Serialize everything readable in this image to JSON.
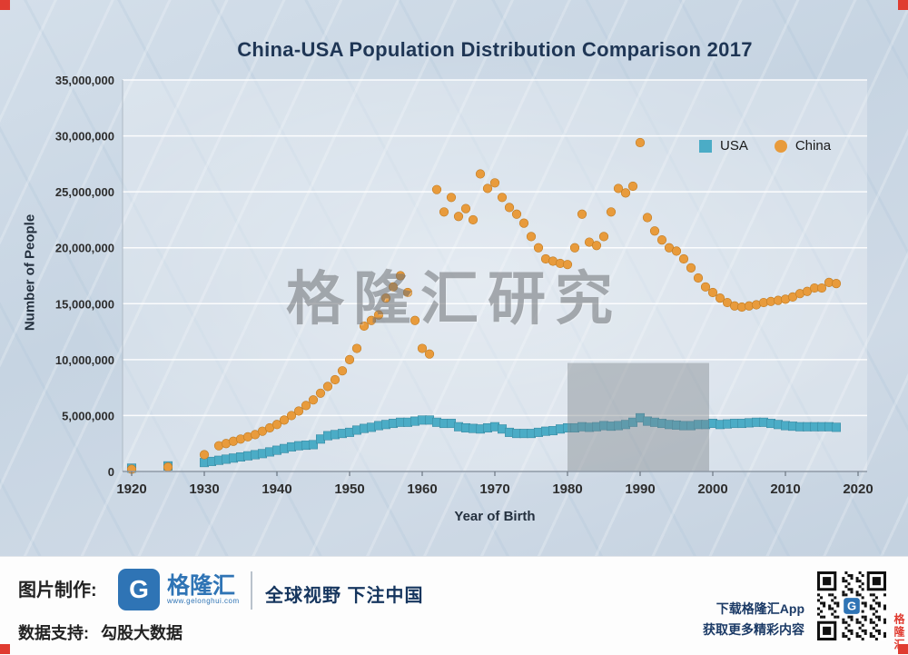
{
  "page": {
    "watermark": "格隆汇研究"
  },
  "chart_data": {
    "type": "scatter",
    "title": "China-USA Population Distribution Comparison 2017",
    "xlabel": "Year of Birth",
    "ylabel": "Number of People",
    "xlim": [
      1917,
      2022
    ],
    "ylim": [
      0,
      35000000
    ],
    "xticks": [
      1920,
      1930,
      1940,
      1950,
      1960,
      1970,
      1980,
      1990,
      2000,
      2010,
      2020
    ],
    "yticks": [
      0,
      5000000,
      10000000,
      15000000,
      20000000,
      25000000,
      30000000,
      35000000
    ],
    "ytick_labels": [
      "0",
      "5,000,000",
      "10,000,000",
      "15,000,000",
      "20,000,000",
      "25,000,000",
      "30,000,000",
      "35,000,000"
    ],
    "grid": "horizontal",
    "legend_position": "upper-right-inside",
    "highlight_region": {
      "x0": 1980,
      "x1": 1999.5,
      "y0": 0,
      "y1": 9700000,
      "color": "rgba(125,130,136,0.42)"
    },
    "series": [
      {
        "name": "USA",
        "marker": "square",
        "color": "#4bacc6",
        "edge": "#3a8ba3",
        "points": [
          [
            1920,
            300000
          ],
          [
            1925,
            500000
          ],
          [
            1930,
            800000
          ],
          [
            1931,
            900000
          ],
          [
            1932,
            1000000
          ],
          [
            1933,
            1100000
          ],
          [
            1934,
            1200000
          ],
          [
            1935,
            1300000
          ],
          [
            1936,
            1400000
          ],
          [
            1937,
            1500000
          ],
          [
            1938,
            1600000
          ],
          [
            1939,
            1750000
          ],
          [
            1940,
            1900000
          ],
          [
            1941,
            2050000
          ],
          [
            1942,
            2200000
          ],
          [
            1943,
            2300000
          ],
          [
            1944,
            2350000
          ],
          [
            1945,
            2400000
          ],
          [
            1946,
            2900000
          ],
          [
            1947,
            3200000
          ],
          [
            1948,
            3300000
          ],
          [
            1949,
            3400000
          ],
          [
            1950,
            3500000
          ],
          [
            1951,
            3700000
          ],
          [
            1952,
            3850000
          ],
          [
            1953,
            3950000
          ],
          [
            1954,
            4100000
          ],
          [
            1955,
            4200000
          ],
          [
            1956,
            4300000
          ],
          [
            1957,
            4400000
          ],
          [
            1958,
            4400000
          ],
          [
            1959,
            4500000
          ],
          [
            1960,
            4600000
          ],
          [
            1961,
            4600000
          ],
          [
            1962,
            4400000
          ],
          [
            1963,
            4300000
          ],
          [
            1964,
            4300000
          ],
          [
            1965,
            4000000
          ],
          [
            1966,
            3900000
          ],
          [
            1967,
            3850000
          ],
          [
            1968,
            3800000
          ],
          [
            1969,
            3900000
          ],
          [
            1970,
            4000000
          ],
          [
            1971,
            3800000
          ],
          [
            1972,
            3500000
          ],
          [
            1973,
            3400000
          ],
          [
            1974,
            3400000
          ],
          [
            1975,
            3400000
          ],
          [
            1976,
            3500000
          ],
          [
            1977,
            3600000
          ],
          [
            1978,
            3650000
          ],
          [
            1979,
            3800000
          ],
          [
            1980,
            3900000
          ],
          [
            1981,
            3900000
          ],
          [
            1982,
            4000000
          ],
          [
            1983,
            3950000
          ],
          [
            1984,
            4000000
          ],
          [
            1985,
            4100000
          ],
          [
            1986,
            4050000
          ],
          [
            1987,
            4100000
          ],
          [
            1988,
            4200000
          ],
          [
            1989,
            4400000
          ],
          [
            1990,
            4800000
          ],
          [
            1991,
            4500000
          ],
          [
            1992,
            4400000
          ],
          [
            1993,
            4300000
          ],
          [
            1994,
            4200000
          ],
          [
            1995,
            4150000
          ],
          [
            1996,
            4100000
          ],
          [
            1997,
            4100000
          ],
          [
            1998,
            4200000
          ],
          [
            1999,
            4200000
          ],
          [
            2000,
            4300000
          ],
          [
            2001,
            4200000
          ],
          [
            2002,
            4250000
          ],
          [
            2003,
            4300000
          ],
          [
            2004,
            4300000
          ],
          [
            2005,
            4350000
          ],
          [
            2006,
            4400000
          ],
          [
            2007,
            4400000
          ],
          [
            2008,
            4300000
          ],
          [
            2009,
            4200000
          ],
          [
            2010,
            4100000
          ],
          [
            2011,
            4050000
          ],
          [
            2012,
            4000000
          ],
          [
            2013,
            4000000
          ],
          [
            2014,
            4000000
          ],
          [
            2015,
            4000000
          ],
          [
            2016,
            4000000
          ],
          [
            2017,
            3950000
          ]
        ]
      },
      {
        "name": "China",
        "marker": "circle",
        "color": "#e89b3c",
        "edge": "#c07b22",
        "points": [
          [
            1920,
            200000
          ],
          [
            1925,
            400000
          ],
          [
            1930,
            1500000
          ],
          [
            1932,
            2300000
          ],
          [
            1933,
            2500000
          ],
          [
            1934,
            2700000
          ],
          [
            1935,
            2900000
          ],
          [
            1936,
            3100000
          ],
          [
            1937,
            3300000
          ],
          [
            1938,
            3600000
          ],
          [
            1939,
            3900000
          ],
          [
            1940,
            4200000
          ],
          [
            1941,
            4600000
          ],
          [
            1942,
            5000000
          ],
          [
            1943,
            5400000
          ],
          [
            1944,
            5900000
          ],
          [
            1945,
            6400000
          ],
          [
            1946,
            7000000
          ],
          [
            1947,
            7600000
          ],
          [
            1948,
            8200000
          ],
          [
            1949,
            9000000
          ],
          [
            1950,
            10000000
          ],
          [
            1951,
            11000000
          ],
          [
            1952,
            13000000
          ],
          [
            1953,
            13500000
          ],
          [
            1954,
            14000000
          ],
          [
            1955,
            15500000
          ],
          [
            1956,
            16500000
          ],
          [
            1957,
            17500000
          ],
          [
            1958,
            16000000
          ],
          [
            1959,
            13500000
          ],
          [
            1960,
            11000000
          ],
          [
            1961,
            10500000
          ],
          [
            1962,
            25200000
          ],
          [
            1963,
            23200000
          ],
          [
            1964,
            24500000
          ],
          [
            1965,
            22800000
          ],
          [
            1966,
            23500000
          ],
          [
            1967,
            22500000
          ],
          [
            1968,
            26600000
          ],
          [
            1969,
            25300000
          ],
          [
            1970,
            25800000
          ],
          [
            1971,
            24500000
          ],
          [
            1972,
            23600000
          ],
          [
            1973,
            23000000
          ],
          [
            1974,
            22200000
          ],
          [
            1975,
            21000000
          ],
          [
            1976,
            20000000
          ],
          [
            1977,
            19000000
          ],
          [
            1978,
            18800000
          ],
          [
            1979,
            18600000
          ],
          [
            1980,
            18500000
          ],
          [
            1981,
            20000000
          ],
          [
            1982,
            23000000
          ],
          [
            1983,
            20500000
          ],
          [
            1984,
            20200000
          ],
          [
            1985,
            21000000
          ],
          [
            1986,
            23200000
          ],
          [
            1987,
            25300000
          ],
          [
            1988,
            24900000
          ],
          [
            1989,
            25500000
          ],
          [
            1990,
            29400000
          ],
          [
            1991,
            22700000
          ],
          [
            1992,
            21500000
          ],
          [
            1993,
            20700000
          ],
          [
            1994,
            20000000
          ],
          [
            1995,
            19700000
          ],
          [
            1996,
            19000000
          ],
          [
            1997,
            18200000
          ],
          [
            1998,
            17300000
          ],
          [
            1999,
            16500000
          ],
          [
            2000,
            16000000
          ],
          [
            2001,
            15500000
          ],
          [
            2002,
            15100000
          ],
          [
            2003,
            14800000
          ],
          [
            2004,
            14700000
          ],
          [
            2005,
            14800000
          ],
          [
            2006,
            14900000
          ],
          [
            2007,
            15100000
          ],
          [
            2008,
            15200000
          ],
          [
            2009,
            15300000
          ],
          [
            2010,
            15400000
          ],
          [
            2011,
            15600000
          ],
          [
            2012,
            15900000
          ],
          [
            2013,
            16100000
          ],
          [
            2014,
            16400000
          ],
          [
            2015,
            16400000
          ],
          [
            2016,
            16900000
          ],
          [
            2017,
            16800000
          ]
        ]
      }
    ]
  },
  "footer": {
    "credit_label": "图片制作:",
    "brand": {
      "logo_letter": "G",
      "name": "格隆汇",
      "url": "www.gelonghui.com"
    },
    "slogan": "全球视野 下注中国",
    "data_support_label": "数据支持:",
    "data_support_value": "勾股大数据",
    "promo_line1": "下载格隆汇App",
    "promo_line2": "获取更多精彩内容",
    "side_mark": "格隆汇"
  }
}
